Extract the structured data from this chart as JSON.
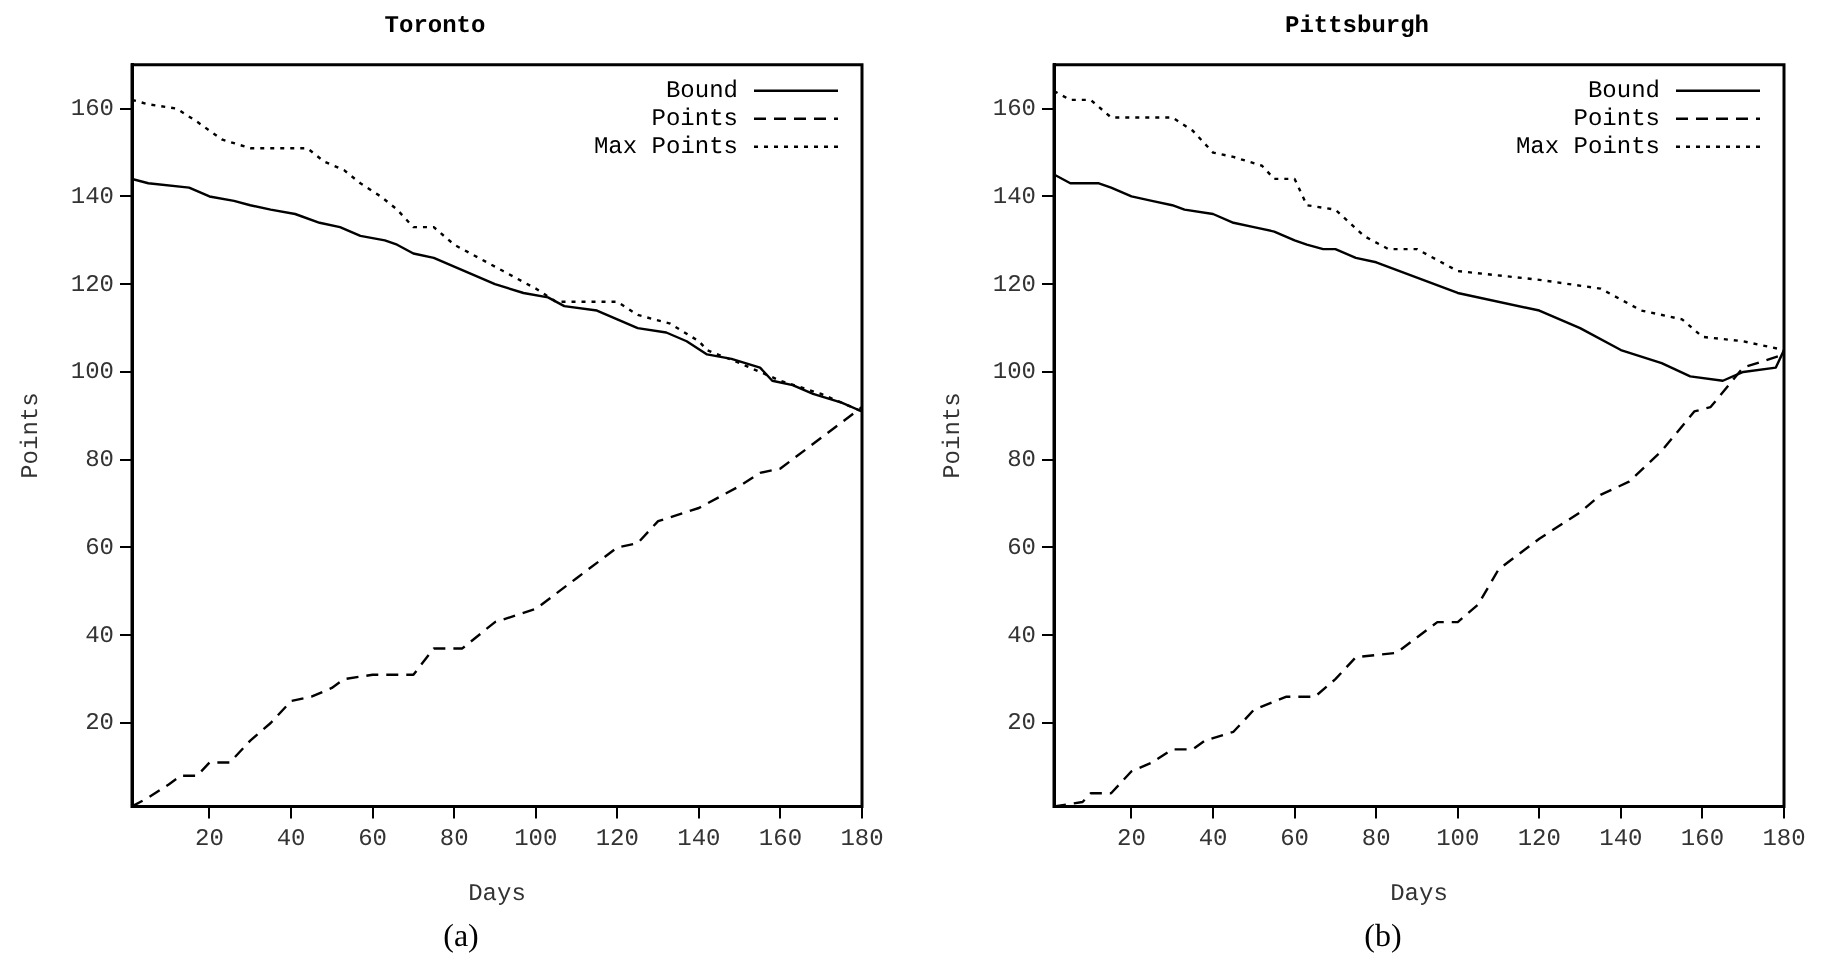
{
  "chart_data": [
    {
      "type": "line",
      "title": "Toronto",
      "xlabel": "Days",
      "ylabel": "Points",
      "xlim": [
        1,
        180
      ],
      "ylim": [
        1,
        170
      ],
      "xticks": [
        20,
        40,
        60,
        80,
        100,
        120,
        140,
        160,
        180
      ],
      "yticks": [
        20,
        40,
        60,
        80,
        100,
        120,
        140,
        160
      ],
      "grid": false,
      "legend": "top right",
      "marker": "none",
      "annotations": [
        "(a)"
      ],
      "series": [
        {
          "name": "Bound",
          "color": "#000000",
          "line_style": "solid",
          "x": [
            1,
            5,
            15,
            20,
            26,
            30,
            35,
            41,
            47,
            52,
            57,
            63,
            66,
            70,
            75,
            80,
            85,
            90,
            97,
            103,
            107,
            115,
            120,
            125,
            132,
            137,
            142,
            148,
            155,
            158,
            163,
            168,
            175,
            180
          ],
          "values": [
            144,
            143,
            142,
            140,
            139,
            138,
            137,
            136,
            134,
            133,
            131,
            130,
            129,
            127,
            126,
            124,
            122,
            120,
            118,
            117,
            115,
            114,
            112,
            110,
            109,
            107,
            104,
            103,
            101,
            98,
            97,
            95,
            93,
            91
          ]
        },
        {
          "name": "Points",
          "color": "#000000",
          "line_style": "dashed",
          "x": [
            1,
            5,
            10,
            13,
            17,
            20,
            25,
            30,
            35,
            40,
            45,
            50,
            53,
            60,
            70,
            75,
            82,
            90,
            100,
            110,
            120,
            125,
            130,
            140,
            150,
            155,
            160,
            170,
            180
          ],
          "values": [
            1,
            3,
            6,
            8,
            8,
            11,
            11,
            16,
            20,
            25,
            26,
            28,
            30,
            31,
            31,
            37,
            37,
            43,
            46,
            53,
            60,
            61,
            66,
            69,
            74,
            77,
            78,
            85,
            92
          ]
        },
        {
          "name": "Max Points",
          "color": "#000000",
          "line_style": "dotted",
          "x": [
            1,
            5,
            12,
            17,
            23,
            30,
            44,
            48,
            53,
            57,
            62,
            66,
            70,
            75,
            80,
            92,
            100,
            105,
            120,
            125,
            133,
            140,
            142,
            150,
            160,
            170,
            180
          ],
          "values": [
            162,
            161,
            160,
            157,
            153,
            151,
            151,
            148,
            146,
            143,
            140,
            137,
            133,
            133,
            129,
            123,
            119,
            116,
            116,
            113,
            111,
            107,
            105,
            102,
            98,
            95,
            91
          ]
        }
      ]
    },
    {
      "type": "line",
      "title": "Pittsburgh",
      "xlabel": "Days",
      "ylabel": "Points",
      "xlim": [
        1,
        180
      ],
      "ylim": [
        1,
        170
      ],
      "xticks": [
        20,
        40,
        60,
        80,
        100,
        120,
        140,
        160,
        180
      ],
      "yticks": [
        20,
        40,
        60,
        80,
        100,
        120,
        140,
        160
      ],
      "grid": false,
      "legend": "top right",
      "marker": "none",
      "annotations": [
        "(b)"
      ],
      "series": [
        {
          "name": "Bound",
          "color": "#000000",
          "line_style": "solid",
          "x": [
            1,
            5,
            12,
            15,
            20,
            25,
            30,
            33,
            40,
            45,
            50,
            55,
            60,
            63,
            67,
            70,
            75,
            80,
            100,
            120,
            130,
            140,
            150,
            157,
            165,
            170,
            178,
            180
          ],
          "values": [
            145,
            143,
            143,
            142,
            140,
            139,
            138,
            137,
            136,
            134,
            133,
            132,
            130,
            129,
            128,
            128,
            126,
            125,
            118,
            114,
            110,
            105,
            102,
            99,
            98,
            100,
            101,
            105
          ]
        },
        {
          "name": "Points",
          "color": "#000000",
          "line_style": "dashed",
          "x": [
            1,
            8,
            10,
            15,
            20,
            25,
            30,
            35,
            38,
            45,
            50,
            58,
            65,
            70,
            75,
            85,
            95,
            100,
            105,
            110,
            120,
            130,
            135,
            142,
            150,
            158,
            162,
            170,
            180
          ],
          "values": [
            1,
            2,
            4,
            4,
            9,
            11,
            14,
            14,
            16,
            18,
            23,
            26,
            26,
            30,
            35,
            36,
            43,
            43,
            47,
            55,
            62,
            68,
            72,
            75,
            82,
            91,
            92,
            101,
            104
          ]
        },
        {
          "name": "Max Points",
          "color": "#000000",
          "line_style": "dotted",
          "x": [
            1,
            5,
            10,
            15,
            30,
            35,
            40,
            45,
            52,
            55,
            60,
            63,
            70,
            77,
            83,
            90,
            100,
            120,
            135,
            145,
            155,
            160,
            170,
            180
          ],
          "values": [
            164,
            162,
            162,
            158,
            158,
            155,
            150,
            149,
            147,
            144,
            144,
            138,
            137,
            131,
            128,
            128,
            123,
            121,
            119,
            114,
            112,
            108,
            107,
            105
          ]
        }
      ]
    }
  ]
}
